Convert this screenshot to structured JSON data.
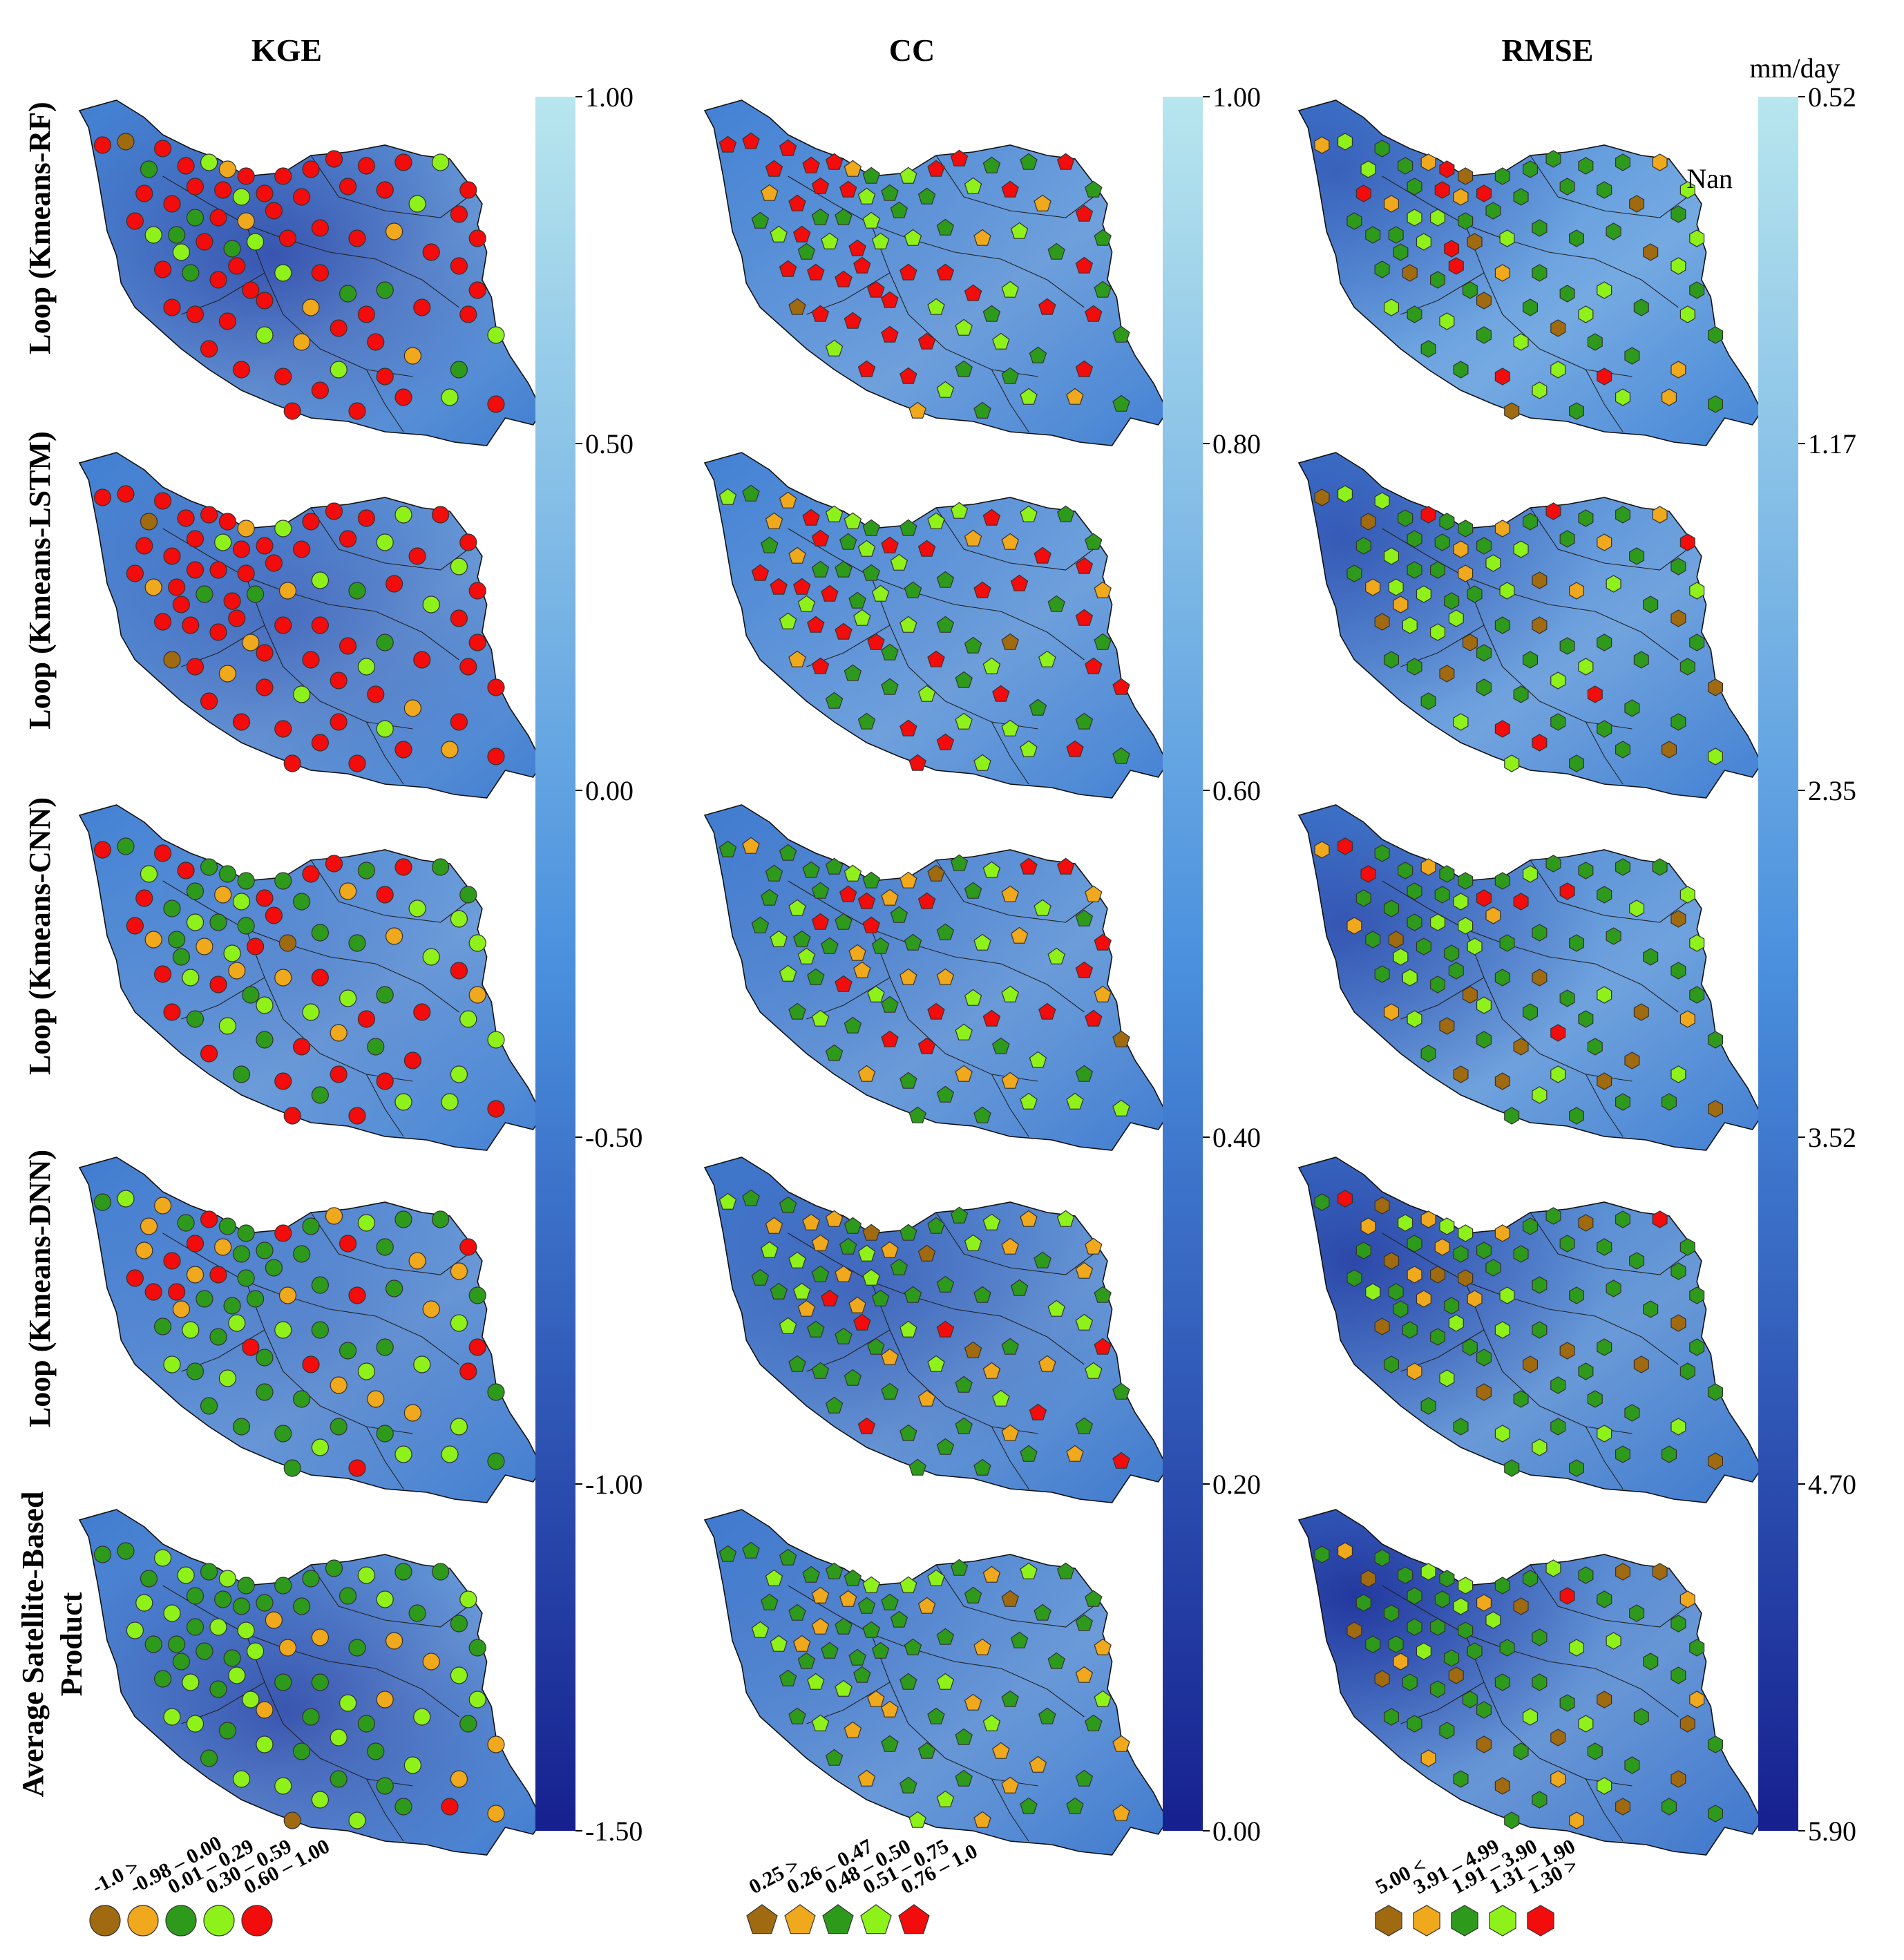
{
  "figure": {
    "column_titles": [
      "KGE",
      "CC",
      "RMSE"
    ],
    "row_labels": [
      [
        "Loop (Kmeans-RF)"
      ],
      [
        "Loop (Kmeans-LSTM)"
      ],
      [
        "Loop (Kmeans-CNN)"
      ],
      [
        "Loop (Kmeans-DNN)"
      ],
      [
        "Average Satellite-Based",
        "Product"
      ]
    ],
    "rmse_unit": "mm/day",
    "nan_label": "Nan"
  },
  "colors": {
    "map_light": "#b8e6ee",
    "map_mid": "#4a90de",
    "map_dark": "#16208f",
    "brown": "#a06a10",
    "orange": "#f0a81c",
    "green": "#2e9a1c",
    "lightgreen": "#8ef21a",
    "red": "#f20c0c"
  },
  "colorbars": [
    {
      "metric": "KGE",
      "ticks": [
        "1.00",
        "0.50",
        "0.00",
        "-0.50",
        "-1.00",
        "-1.50"
      ]
    },
    {
      "metric": "CC",
      "ticks": [
        "1.00",
        "0.80",
        "0.60",
        "0.40",
        "0.20",
        "0.00"
      ]
    },
    {
      "metric": "RMSE",
      "ticks": [
        "0.52",
        "1.17",
        "2.35",
        "3.52",
        "4.70",
        "5.90"
      ]
    }
  ],
  "legends": [
    {
      "metric": "KGE",
      "marker": "circle",
      "items": [
        {
          "label": "-1.0 >",
          "color": "#a06a10"
        },
        {
          "label": "-0.98 – 0.00",
          "color": "#f0a81c"
        },
        {
          "label": "0.01 – 0.29",
          "color": "#2e9a1c"
        },
        {
          "label": "0.30 – 0.59",
          "color": "#8ef21a"
        },
        {
          "label": "0.60 – 1.00",
          "color": "#f20c0c"
        }
      ]
    },
    {
      "metric": "CC",
      "marker": "pentagon",
      "items": [
        {
          "label": "0.25 >",
          "color": "#a06a10"
        },
        {
          "label": "0.26 – 0.47",
          "color": "#f0a81c"
        },
        {
          "label": "0.48 – 0.50",
          "color": "#2e9a1c"
        },
        {
          "label": "0.51 – 0.75",
          "color": "#8ef21a"
        },
        {
          "label": "0.76 – 1.0",
          "color": "#f20c0c"
        }
      ]
    },
    {
      "metric": "RMSE",
      "marker": "hexagon",
      "items": [
        {
          "label": "5.00 <",
          "color": "#a06a10"
        },
        {
          "label": "3.91 – 4.99",
          "color": "#f0a81c"
        },
        {
          "label": "1.91 – 3.90",
          "color": "#2e9a1c"
        },
        {
          "label": "1.31 – 1.90",
          "color": "#8ef21a"
        },
        {
          "label": "1.30 >",
          "color": "#f20c0c"
        }
      ]
    }
  ],
  "chart_data": {
    "type": "heatmap",
    "description_scope": "15 station maps: 3 metrics (KGE, CC, RMSE) × 5 rows",
    "colorbar_ranges": {
      "KGE": [
        -1.5,
        1.0
      ],
      "CC": [
        0.0,
        1.0
      ],
      "RMSE": [
        0.52,
        5.9
      ]
    },
    "category_share_estimates": {
      "KGE": [
        {
          "row": "Loop (Kmeans-RF)",
          "counts": {
            "brown": 1,
            "orange": 6,
            "green": 8,
            "lightgreen": 12,
            "red": 53
          }
        },
        {
          "row": "Loop (Kmeans-LSTM)",
          "counts": {
            "brown": 2,
            "orange": 7,
            "green": 4,
            "lightgreen": 10,
            "red": 57
          }
        },
        {
          "row": "Loop (Kmeans-CNN)",
          "counts": {
            "brown": 1,
            "orange": 9,
            "green": 24,
            "lightgreen": 18,
            "red": 28
          }
        },
        {
          "row": "Loop (Kmeans-DNN)",
          "counts": {
            "brown": 0,
            "orange": 14,
            "green": 36,
            "lightgreen": 14,
            "red": 16
          }
        },
        {
          "row": "Average Satellite-Based Product",
          "counts": {
            "brown": 1,
            "orange": 10,
            "green": 40,
            "lightgreen": 28,
            "red": 1
          }
        }
      ],
      "CC": [
        {
          "row": "Loop (Kmeans-RF)",
          "counts": {
            "brown": 1,
            "orange": 6,
            "green": 22,
            "lightgreen": 16,
            "red": 35
          }
        },
        {
          "row": "Loop (Kmeans-LSTM)",
          "counts": {
            "brown": 1,
            "orange": 7,
            "green": 26,
            "lightgreen": 20,
            "red": 26
          }
        },
        {
          "row": "Loop (Kmeans-CNN)",
          "counts": {
            "brown": 2,
            "orange": 14,
            "green": 30,
            "lightgreen": 18,
            "red": 16
          }
        },
        {
          "row": "Loop (Kmeans-DNN)",
          "counts": {
            "brown": 3,
            "orange": 18,
            "green": 36,
            "lightgreen": 16,
            "red": 7
          }
        },
        {
          "row": "Average Satellite-Based Product",
          "counts": {
            "brown": 1,
            "orange": 20,
            "green": 44,
            "lightgreen": 15,
            "red": 0
          }
        }
      ],
      "RMSE": [
        {
          "row": "Loop (Kmeans-RF)",
          "counts": {
            "brown": 8,
            "orange": 8,
            "green": 38,
            "lightgreen": 18,
            "red": 8
          }
        },
        {
          "row": "Loop (Kmeans-LSTM)",
          "counts": {
            "brown": 10,
            "orange": 8,
            "green": 38,
            "lightgreen": 18,
            "red": 6
          }
        },
        {
          "row": "Loop (Kmeans-CNN)",
          "counts": {
            "brown": 12,
            "orange": 6,
            "green": 40,
            "lightgreen": 16,
            "red": 6
          }
        },
        {
          "row": "Loop (Kmeans-DNN)",
          "counts": {
            "brown": 12,
            "orange": 8,
            "green": 46,
            "lightgreen": 12,
            "red": 2
          }
        },
        {
          "row": "Average Satellite-Based Product",
          "counts": {
            "brown": 14,
            "orange": 8,
            "green": 46,
            "lightgreen": 11,
            "red": 1
          }
        }
      ]
    }
  }
}
